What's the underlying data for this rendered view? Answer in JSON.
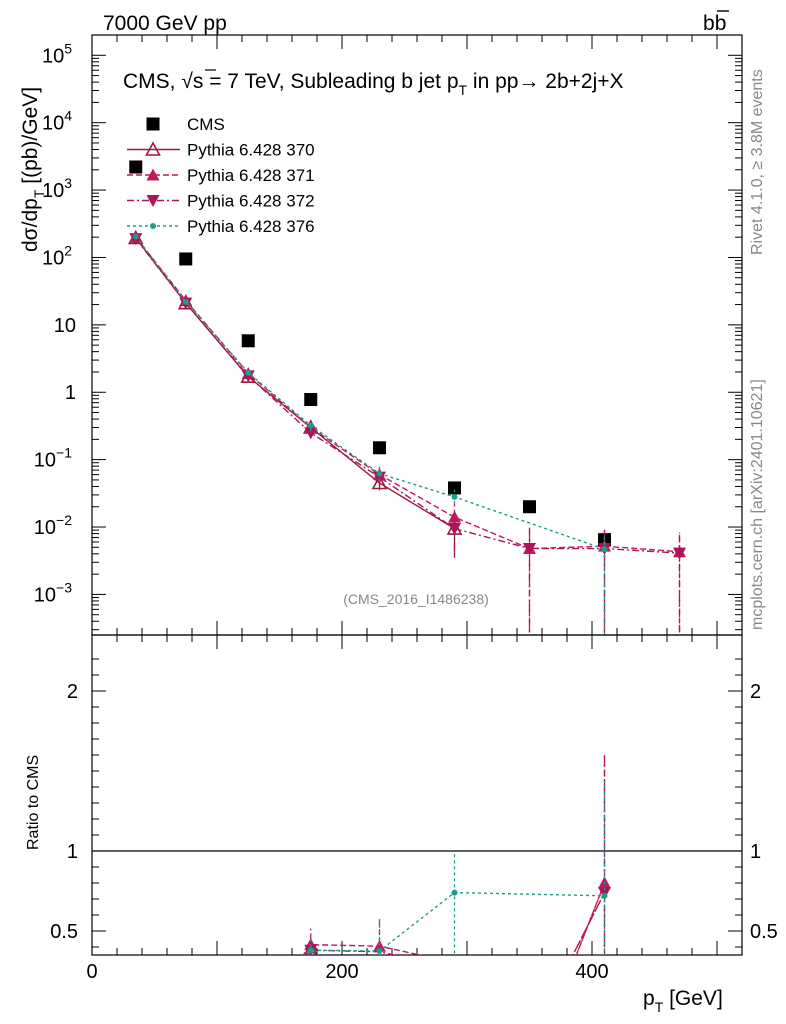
{
  "header": {
    "left": "7000 GeV pp",
    "right_b": "b",
    "right_bbar": "b"
  },
  "side": {
    "rivet": "Rivet 4.1.0, ≥ 3.8M events",
    "mcplots": "mcplots.cern.ch [arXiv:2401.10621]"
  },
  "chart_data": [
    {
      "type": "scatter",
      "panel": "main",
      "title": "CMS, √s = 7 TeV, Subleading b jet pT in pp→ 2b+2j+X",
      "title_parts": {
        "p1": "CMS, ",
        "sqrt": "√",
        "p2": "s = 7 TeV, Subleading b jet p",
        "sub": "T",
        "p3": " in pp",
        "arrow": "→",
        "p4": "  2b+2j+X"
      },
      "watermark": "(CMS_2016_I1486238)",
      "xlabel": "pT [GeV]",
      "xlabel_parts": {
        "p": "p",
        "sub": "T",
        "unit": " [GeV]"
      },
      "ylabel": "dσ/dpT [(pb)/GeV]",
      "ylabel_parts": {
        "a": "dσ/dp",
        "sub": "T",
        "b": "  [(pb)/GeV]"
      },
      "yscale": "log",
      "xlim": [
        0,
        520
      ],
      "ylim": [
        0.00025,
        200000
      ],
      "x_ticks": [
        {
          "v": 0,
          "label": "0"
        },
        {
          "v": 200,
          "label": "200"
        },
        {
          "v": 400,
          "label": "400"
        }
      ],
      "y_ticks": [
        {
          "v": 100000,
          "base": "10",
          "exp": "5"
        },
        {
          "v": 10000,
          "base": "10",
          "exp": "4"
        },
        {
          "v": 1000,
          "base": "10",
          "exp": "3"
        },
        {
          "v": 100,
          "base": "10",
          "exp": "2"
        },
        {
          "v": 10,
          "base": "10",
          "exp": ""
        },
        {
          "v": 1,
          "base": "1",
          "exp": ""
        },
        {
          "v": 0.1,
          "base": "10",
          "exp": "−1"
        },
        {
          "v": 0.01,
          "base": "10",
          "exp": "−2"
        },
        {
          "v": 0.001,
          "base": "10",
          "exp": "−3"
        }
      ],
      "series": [
        {
          "name": "CMS",
          "color": "#000000",
          "marker": "square",
          "line": "none",
          "x": [
            35,
            75,
            125,
            175,
            230,
            290,
            350,
            410
          ],
          "y": [
            2200,
            95,
            5.8,
            0.78,
            0.15,
            0.038,
            0.02,
            0.0065
          ]
        },
        {
          "name": "Pythia 6.428 370",
          "color": "#9b1b30",
          "marker": "triangle-open",
          "dash": "",
          "x": [
            35,
            75,
            125,
            175,
            230,
            290
          ],
          "y": [
            195,
            21,
            1.7,
            0.3,
            0.045,
            0.0095
          ],
          "err_lo": [
            null,
            null,
            null,
            0.05,
            0.01,
            0.006
          ],
          "err_hi": [
            null,
            null,
            null,
            0.05,
            0.01,
            0.004
          ]
        },
        {
          "name": "Pythia 6.428 371",
          "color": "#c2185b",
          "marker": "triangle-up",
          "dash": "6,3",
          "x": [
            35,
            75,
            125,
            175,
            230,
            290,
            350,
            410,
            470
          ],
          "y": [
            200,
            23,
            1.9,
            0.3,
            0.06,
            0.014,
            0.0048,
            0.0052,
            0.0043
          ],
          "err_lo": [
            null,
            null,
            null,
            0.05,
            0.015,
            0.006,
            0.0046,
            0.005,
            0.0041
          ],
          "err_hi": [
            null,
            null,
            null,
            0.05,
            0.02,
            0.008,
            0.005,
            0.004,
            0.004
          ]
        },
        {
          "name": "Pythia 6.428 372",
          "color": "#ad1457",
          "marker": "triangle-down",
          "dash": "7,3,2,3",
          "x": [
            35,
            75,
            125,
            175,
            230,
            290,
            350,
            410,
            470
          ],
          "y": [
            190,
            21,
            1.75,
            0.25,
            0.055,
            0.0095,
            0.0048,
            0.0048,
            0.0041
          ],
          "err_lo": [
            null,
            null,
            null,
            0.04,
            0.015,
            0.005,
            0.0046,
            0.0046,
            0.004
          ],
          "err_hi": [
            null,
            null,
            null,
            0.04,
            0.015,
            0.005,
            0.005,
            0.004,
            0.004
          ]
        },
        {
          "name": "Pythia 6.428 376",
          "color": "#1a9e8a",
          "marker": "dot",
          "dash": "3,3",
          "x": [
            35,
            75,
            125,
            175,
            230,
            290,
            410
          ],
          "y": [
            205,
            22,
            1.95,
            0.32,
            0.062,
            0.028,
            0.0047
          ],
          "err_lo": [
            null,
            null,
            null,
            0.06,
            0.015,
            0.006,
            0.0045
          ],
          "err_hi": [
            null,
            null,
            null,
            0.06,
            0.02,
            0.008,
            0.003
          ]
        }
      ]
    },
    {
      "type": "line",
      "panel": "ratio",
      "ylabel": "Ratio to CMS",
      "xlim": [
        0,
        520
      ],
      "ylim": [
        0.35,
        2.35
      ],
      "y_ticks": [
        {
          "v": 0.5,
          "label": "0.5"
        },
        {
          "v": 1,
          "label": "1"
        },
        {
          "v": 2,
          "label": "2"
        }
      ],
      "reference": 1,
      "series": [
        {
          "name": "Pythia 6.428 370",
          "color": "#9b1b30",
          "marker": "triangle-open",
          "dash": "",
          "x": [
            165,
            175,
            190
          ],
          "y": [
            0.3,
            0.38,
            0.28
          ],
          "err_lo": [
            null,
            0.05,
            null
          ],
          "err_hi": [
            null,
            0.06,
            null
          ]
        },
        {
          "name": "Pythia 6.428 371",
          "color": "#c2185b",
          "marker": "triangle-up",
          "dash": "6,3",
          "x": [
            155,
            175,
            230,
            280,
            380,
            410,
            380
          ],
          "y": [
            0.2,
            0.415,
            0.405,
            0.32,
            0.2,
            0.8,
            0.2
          ],
          "markers_at": [
            175,
            230,
            410
          ],
          "err_lo": [
            null,
            0.08,
            0.1,
            null,
            null,
            0.4,
            null
          ],
          "err_hi": [
            null,
            0.1,
            0.18,
            null,
            null,
            0.8,
            null
          ]
        },
        {
          "name": "Pythia 6.428 372",
          "color": "#ad1457",
          "marker": "triangle-down",
          "dash": "7,3,2,3",
          "x": [
            150,
            175,
            230,
            270,
            375,
            410,
            375
          ],
          "y": [
            0.2,
            0.38,
            0.37,
            0.3,
            0.2,
            0.74,
            0.2
          ],
          "markers_at": [
            175,
            410
          ],
          "err_lo": [
            null,
            0.06,
            null,
            null,
            null,
            0.4,
            null
          ],
          "err_hi": [
            null,
            0.08,
            null,
            null,
            null,
            0.85,
            null
          ]
        },
        {
          "name": "Pythia 6.428 376",
          "color": "#1a9e8a",
          "marker": "dot",
          "dash": "3,3",
          "x": [
            160,
            175,
            230,
            290,
            410
          ],
          "y": [
            0.3,
            0.38,
            0.375,
            0.74,
            0.72
          ],
          "markers_at": [
            175,
            230,
            290,
            410
          ],
          "err_lo": [
            null,
            0.06,
            0.08,
            0.38,
            0.38
          ],
          "err_hi": [
            null,
            0.08,
            0.2,
            0.25,
            0.72
          ]
        }
      ]
    }
  ]
}
